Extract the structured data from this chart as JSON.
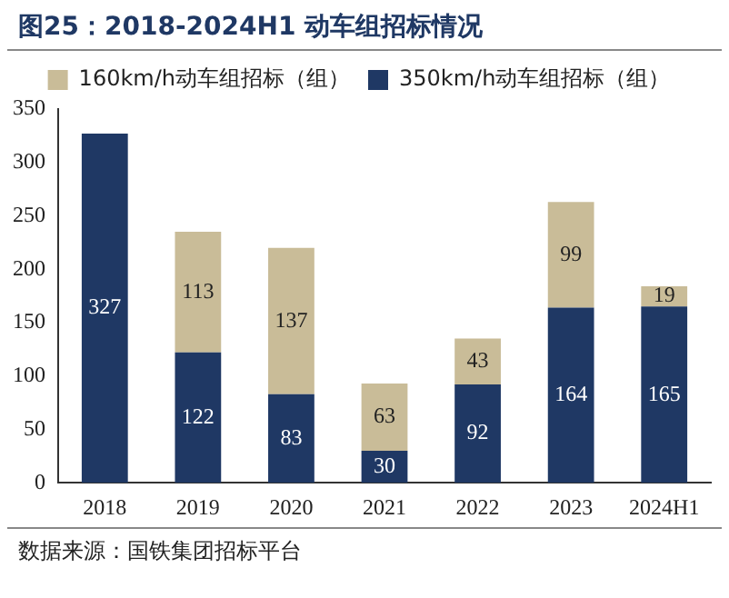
{
  "chart_data": {
    "type": "bar",
    "title": "图25：2018-2024H1 动车组招标情况",
    "categories": [
      "2018",
      "2019",
      "2020",
      "2021",
      "2022",
      "2023",
      "2024H1"
    ],
    "stacked": true,
    "series": [
      {
        "name": "350km/h动车组招标（组）",
        "color": "#1f3864",
        "values": [
          327,
          122,
          83,
          30,
          92,
          164,
          165
        ]
      },
      {
        "name": "160km/h动车组招标（组）",
        "color": "#c9bc98",
        "values": [
          null,
          113,
          137,
          63,
          43,
          99,
          19
        ]
      }
    ],
    "ylim": [
      0,
      350
    ],
    "yticks": [
      0,
      50,
      100,
      150,
      200,
      250,
      300,
      350
    ],
    "grid": false,
    "legend": "top",
    "data_labels": true,
    "annotations": [
      "数据来源：国铁集团招标平台"
    ]
  }
}
